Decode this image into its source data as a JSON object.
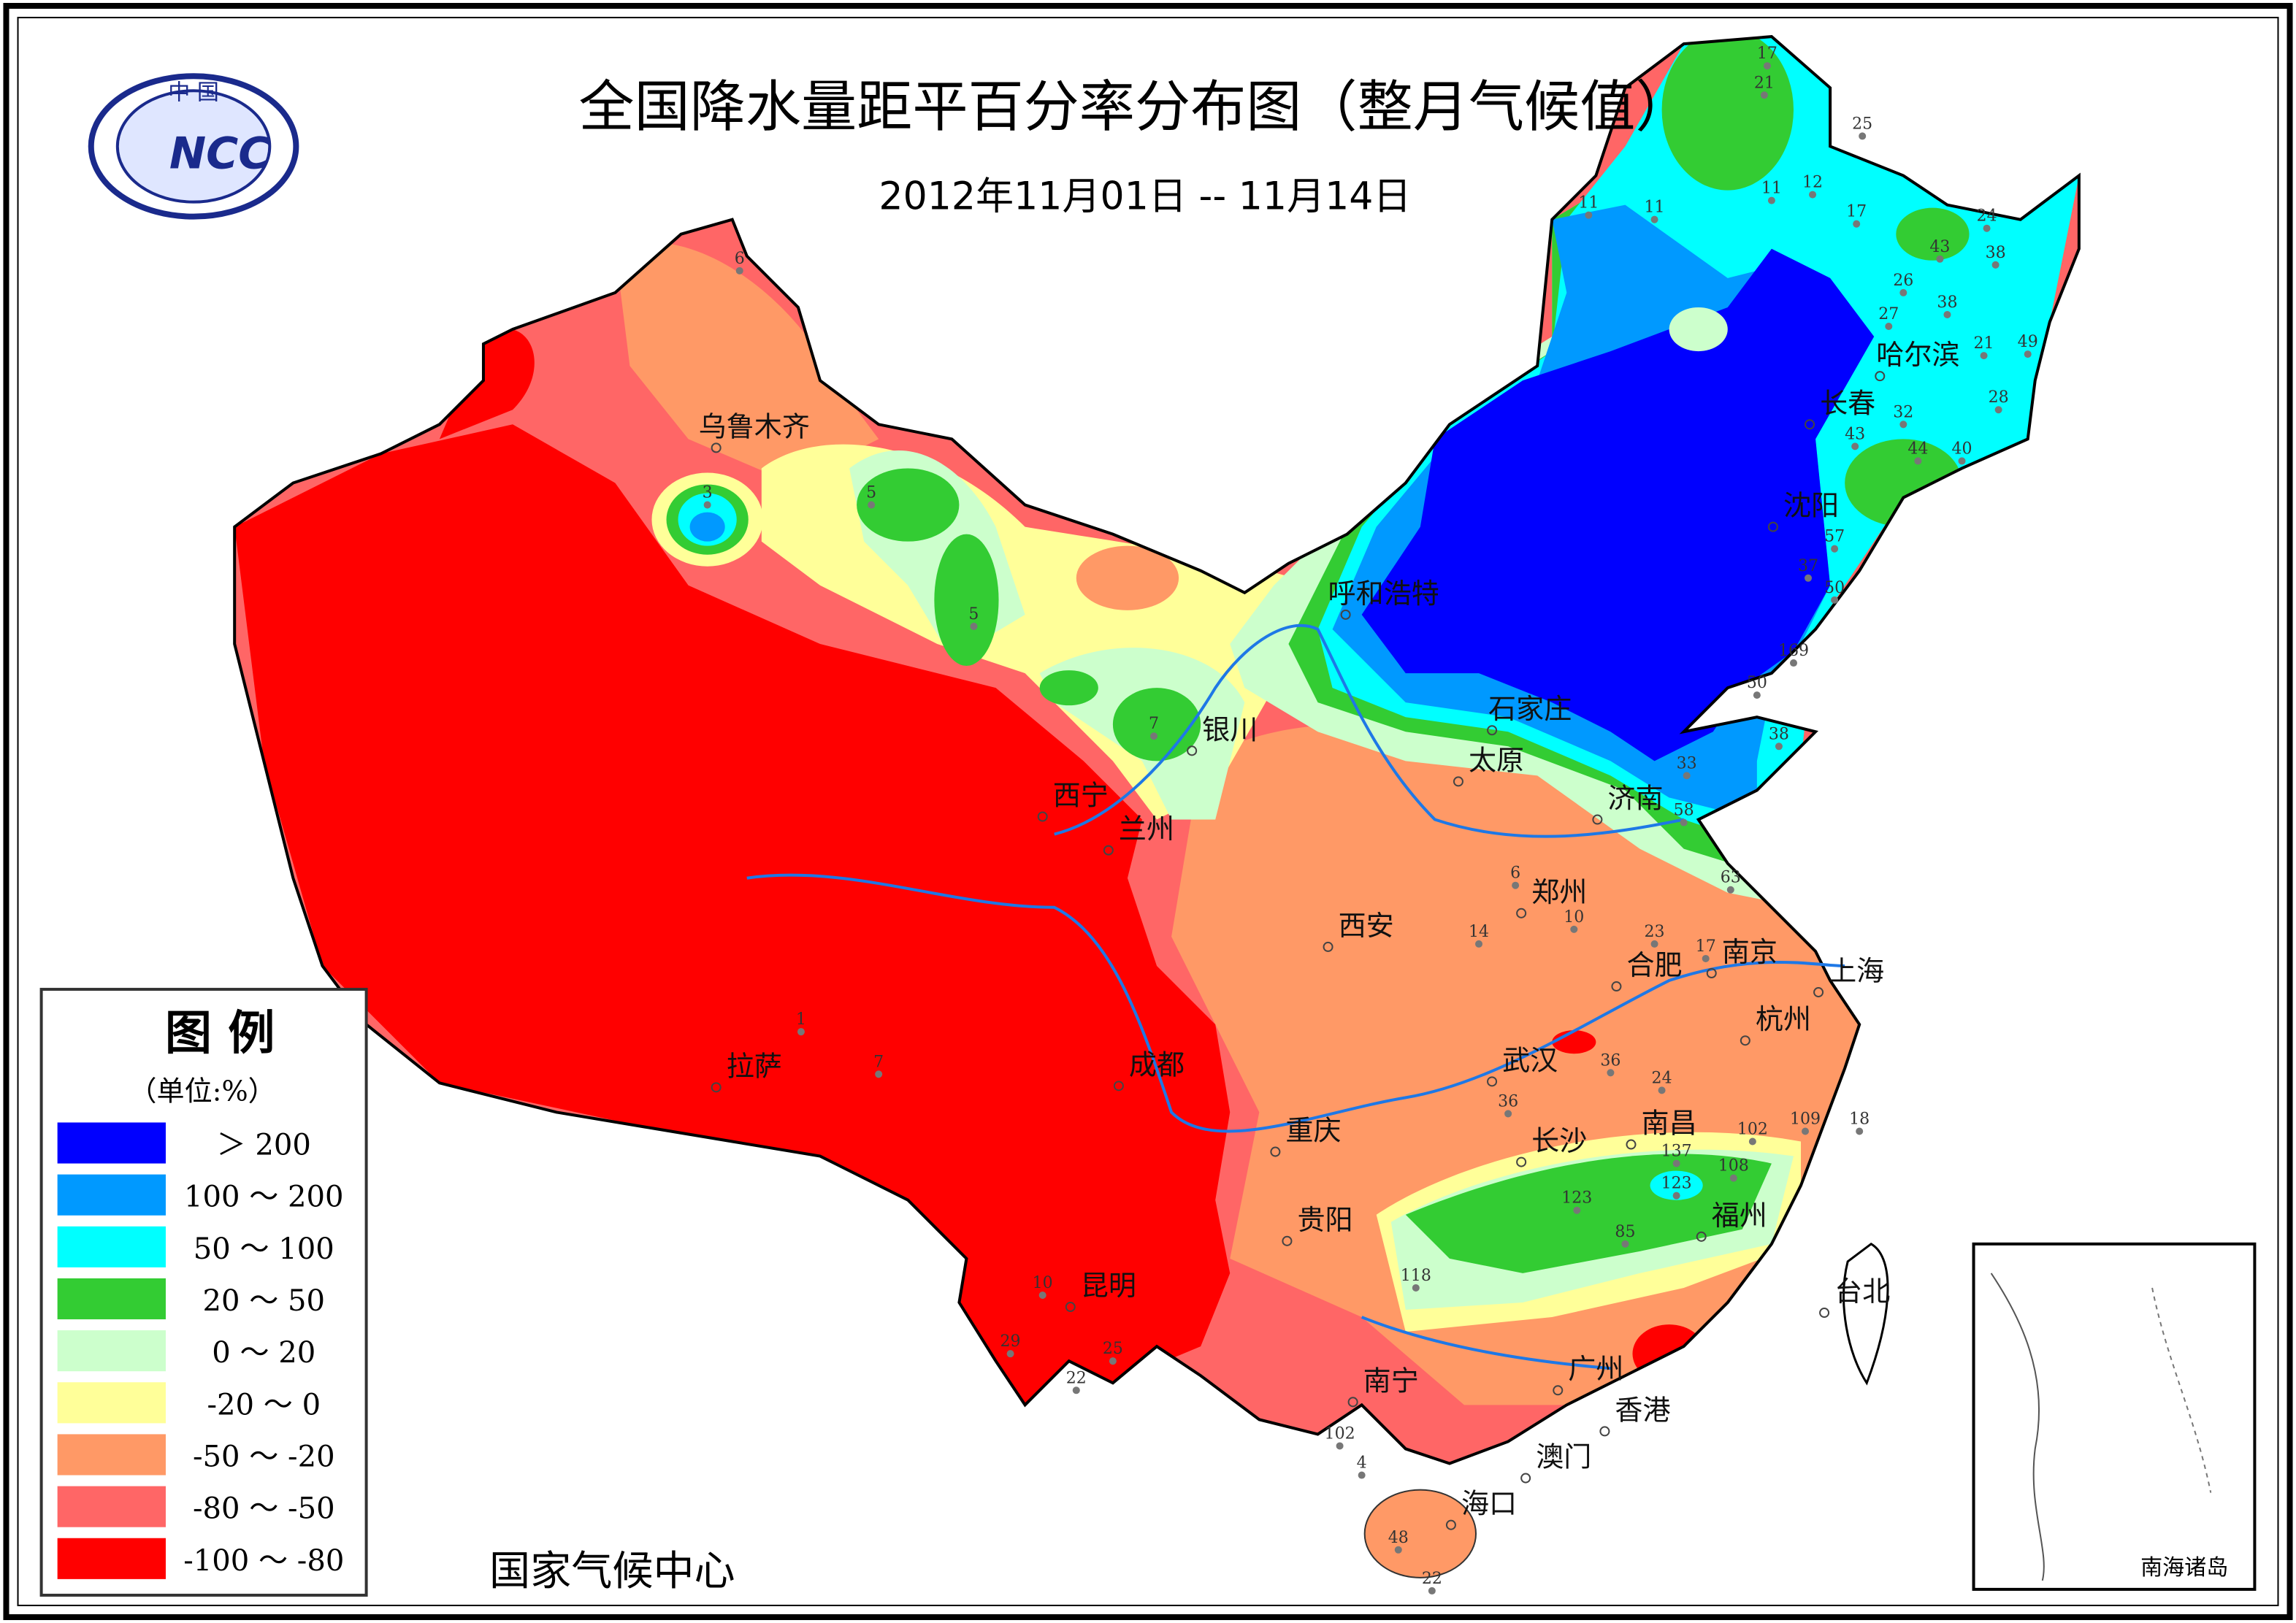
{
  "title": "全国降水量距平百分率分布图（整月气候值）",
  "subtitle": "2012年11月01日 -- 11月14日",
  "logo": {
    "top_text": "中 国",
    "letters": "NCC"
  },
  "footer": "国家气候中心",
  "inset_label": "南海诸岛",
  "legend": {
    "title": "图 例",
    "unit": "（单位:%）",
    "items": [
      {
        "label": "＞ 200",
        "color": "#0000ff"
      },
      {
        "label": "100 ～ 200",
        "color": "#0099ff"
      },
      {
        "label": "50 ～ 100",
        "color": "#00ffff"
      },
      {
        "label": "20 ～ 50",
        "color": "#33cc33"
      },
      {
        "label": "0 ～ 20",
        "color": "#ccffcc"
      },
      {
        "label": "-20 ～ 0",
        "color": "#ffff99"
      },
      {
        "label": "-50 ～ -20",
        "color": "#ff9966"
      },
      {
        "label": "-80 ～ -50",
        "color": "#ff6666"
      },
      {
        "label": "-100 ～ -80",
        "color": "#ff0000"
      }
    ]
  },
  "cities": [
    "乌鲁木齐",
    "拉萨",
    "西宁",
    "兰州",
    "银川",
    "呼和浩特",
    "哈尔滨",
    "长春",
    "沈阳",
    "石家庄",
    "太原",
    "济南",
    "郑州",
    "西安",
    "南京",
    "合肥",
    "上海",
    "杭州",
    "武汉",
    "成都",
    "重庆",
    "长沙",
    "南昌",
    "福州",
    "贵阳",
    "昆明",
    "南宁",
    "广州",
    "香港",
    "澳门",
    "海口",
    "台北"
  ],
  "stations": [
    "17",
    "21",
    "25",
    "11",
    "11",
    "11",
    "12",
    "17",
    "24",
    "43",
    "38",
    "38",
    "21",
    "49",
    "26",
    "27",
    "28",
    "32",
    "44",
    "40",
    "43",
    "57",
    "37",
    "50",
    "169",
    "50",
    "38",
    "33",
    "58",
    "63",
    "137",
    "108",
    "123",
    "123",
    "85",
    "118",
    "102",
    "109",
    "18",
    "3",
    "6",
    "5",
    "5",
    "7",
    "7",
    "1",
    "102",
    "48",
    "22",
    "4",
    "10",
    "29",
    "22",
    "25",
    "36",
    "36",
    "24",
    "6",
    "10",
    "14",
    "23",
    "17"
  ]
}
